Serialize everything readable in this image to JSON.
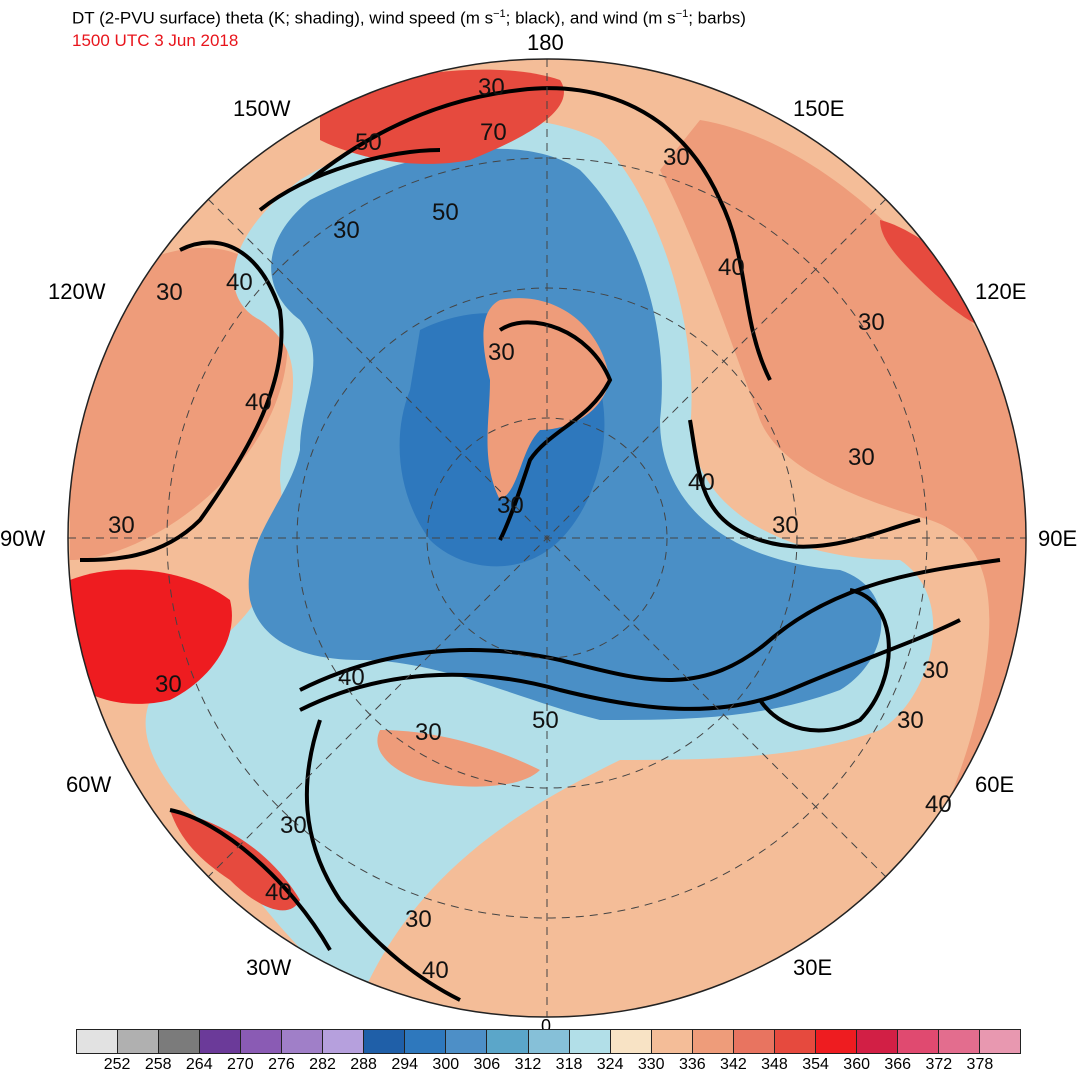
{
  "header": {
    "title_main": "DT (2-PVU surface) theta (K; shading), wind speed (m s",
    "title_mid": "; black), and wind (m s",
    "title_end": "; barbs)",
    "exponent": "−1",
    "valid_time": "1500 UTC 3 Jun 2018"
  },
  "longitude_labels": {
    "lon_180": "180",
    "lon_150w": "150W",
    "lon_150e": "150E",
    "lon_120w": "120W",
    "lon_120e": "120E",
    "lon_90w": "90W",
    "lon_90e": "90E",
    "lon_60w": "60W",
    "lon_60e": "60E",
    "lon_30w": "30W",
    "lon_30e": "30E",
    "lon_0": "0"
  },
  "contour_labels": [
    "30",
    "50",
    "70",
    "50",
    "30",
    "40",
    "30",
    "30",
    "40",
    "30",
    "30",
    "40",
    "30",
    "30",
    "30",
    "30",
    "40",
    "50",
    "30",
    "30",
    "40",
    "30",
    "40",
    "30",
    "40",
    "30"
  ],
  "colorbar": {
    "colors": [
      "#e2e2e2",
      "#b0b0b0",
      "#7b7b7b",
      "#6b3a99",
      "#8a5bb4",
      "#a07fc8",
      "#b6a0dd",
      "#1f5fa8",
      "#2e78bd",
      "#4d8fc7",
      "#5ba6c9",
      "#86c0d8",
      "#b2dfe8",
      "#f8e3c5",
      "#f4bd98",
      "#ee9c7a",
      "#e87460",
      "#e64a3e",
      "#ee1c20",
      "#d21f45",
      "#e04a70",
      "#e36d8e",
      "#e898b0"
    ],
    "labels": [
      "252",
      "258",
      "264",
      "270",
      "276",
      "282",
      "288",
      "294",
      "300",
      "306",
      "312",
      "318",
      "324",
      "330",
      "336",
      "342",
      "348",
      "354",
      "360",
      "366",
      "372",
      "378"
    ]
  },
  "map_colors": {
    "ocean_cold": "#4a8fc6",
    "deep_cold": "#2e78bd",
    "light_cold": "#86c0d8",
    "pale": "#b2dfe8",
    "warm_pale": "#f8e3c5",
    "warm": "#f4bd98",
    "warmer": "#ee9c7a",
    "hot": "#e64a3e",
    "hottest": "#ee1c20"
  }
}
